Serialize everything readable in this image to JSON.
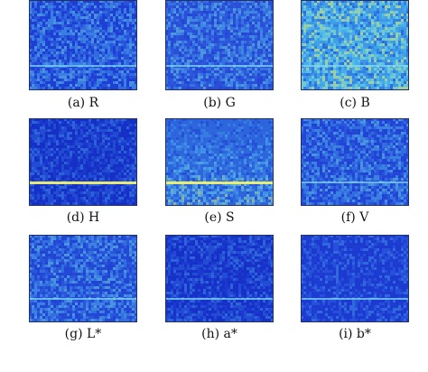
{
  "figure": {
    "panels": [
      {
        "id": "R",
        "caption": "(a) R",
        "base": "#1f3fd4",
        "style": "medium",
        "line": "faint"
      },
      {
        "id": "G",
        "caption": "(b) G",
        "base": "#2a4ed8",
        "style": "medium",
        "line": "faint"
      },
      {
        "id": "B",
        "caption": "(c) B",
        "base": "#3ea4e6",
        "style": "bright",
        "line": "faint"
      },
      {
        "id": "H",
        "caption": "(d) H",
        "base": "#1630c6",
        "style": "dark",
        "line": "strong"
      },
      {
        "id": "S",
        "caption": "(e) S",
        "base": "#2e66dc",
        "style": "bright-bottom",
        "line": "strong"
      },
      {
        "id": "V",
        "caption": "(f) V",
        "base": "#2346d6",
        "style": "medium",
        "line": "faint"
      },
      {
        "id": "L",
        "caption": "(g) L*",
        "base": "#2448d6",
        "style": "medium",
        "line": "faint"
      },
      {
        "id": "a",
        "caption": "(h) a*",
        "base": "#1731c8",
        "style": "dark",
        "line": "faint"
      },
      {
        "id": "b",
        "caption": "(i) b*",
        "base": "#1d3ad0",
        "style": "dark",
        "line": "faint"
      }
    ]
  }
}
